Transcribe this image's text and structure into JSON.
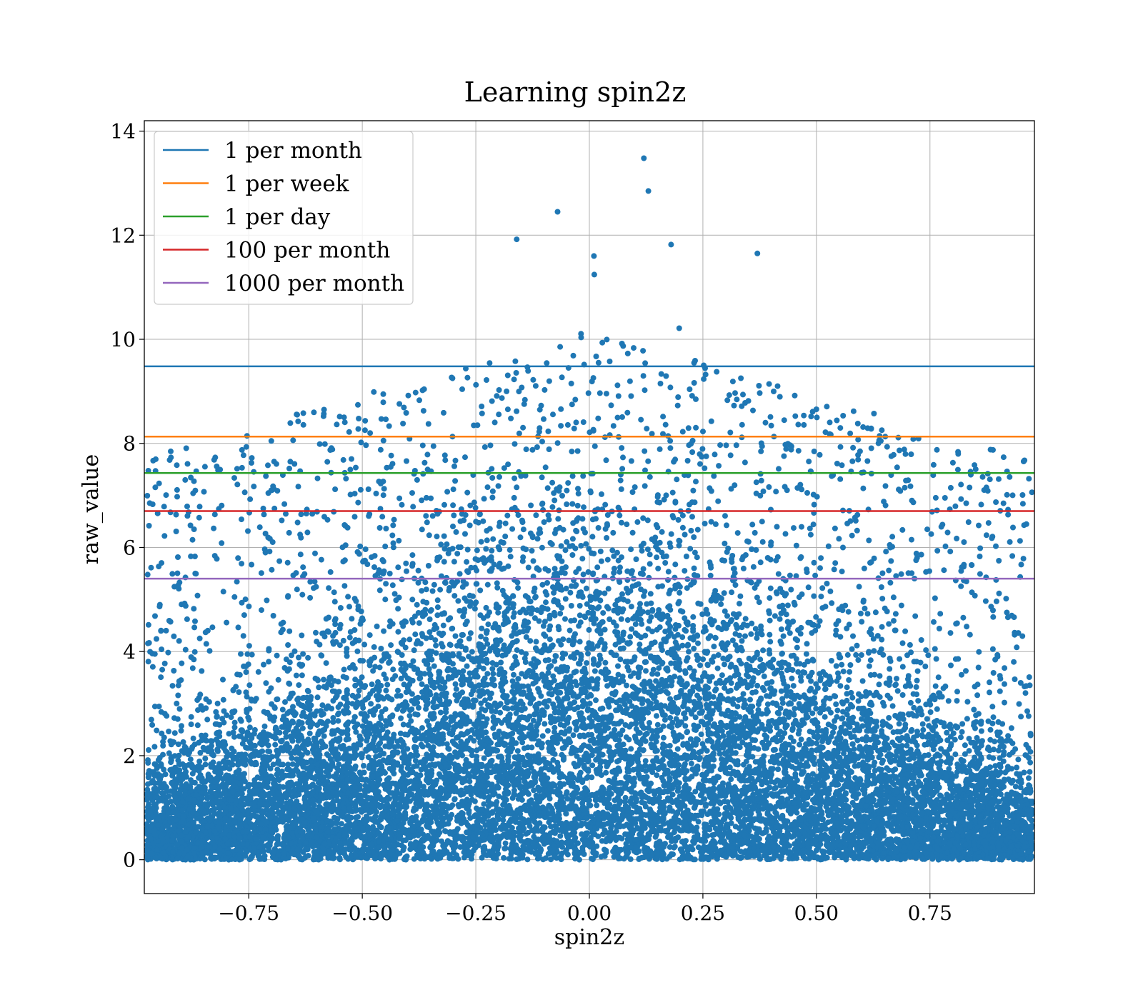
{
  "chart_data": {
    "type": "scatter",
    "title": "Learning spin2z",
    "xlabel": "spin2z",
    "ylabel": "raw_value",
    "xlim": [
      -0.98,
      0.98
    ],
    "ylim": [
      -0.65,
      14.2
    ],
    "xticks": [
      -0.75,
      -0.5,
      -0.25,
      0.0,
      0.25,
      0.5,
      0.75
    ],
    "xtick_labels": [
      "−0.75",
      "−0.50",
      "−0.25",
      "0.00",
      "0.25",
      "0.50",
      "0.75"
    ],
    "yticks": [
      0,
      2,
      4,
      6,
      8,
      10,
      12,
      14
    ],
    "ytick_labels": [
      "0",
      "2",
      "4",
      "6",
      "8",
      "10",
      "12",
      "14"
    ],
    "grid": true,
    "legend_position": "top-left",
    "scatter_color": "#1f77b4",
    "hlines": [
      {
        "name": "1 per month",
        "y": 9.48,
        "color": "#1f77b4"
      },
      {
        "name": "1 per week",
        "y": 8.13,
        "color": "#ff7f0e"
      },
      {
        "name": "1 per day",
        "y": 7.43,
        "color": "#2ca02c"
      },
      {
        "name": "100 per month",
        "y": 6.7,
        "color": "#d62728"
      },
      {
        "name": "1000 per month",
        "y": 5.4,
        "color": "#9467bd"
      }
    ],
    "notable_points": [
      {
        "x": 0.12,
        "y": 13.48
      },
      {
        "x": 0.13,
        "y": 12.85
      },
      {
        "x": -0.07,
        "y": 12.45
      },
      {
        "x": -0.16,
        "y": 11.92
      },
      {
        "x": 0.18,
        "y": 11.82
      },
      {
        "x": 0.37,
        "y": 11.65
      },
      {
        "x": 0.01,
        "y": 11.6
      }
    ]
  }
}
